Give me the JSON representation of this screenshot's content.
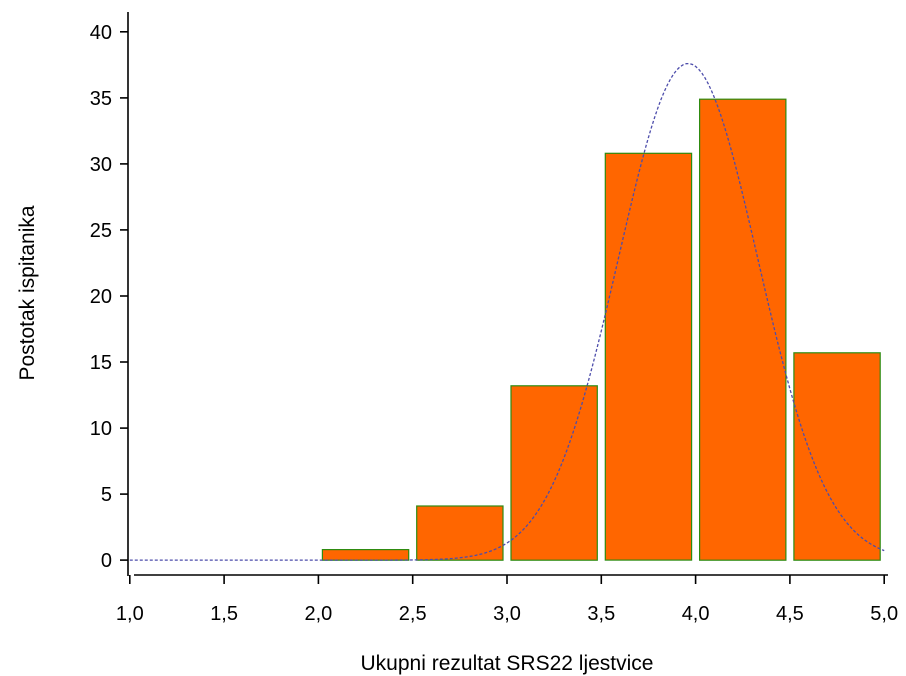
{
  "chart_data": {
    "type": "bar",
    "title": "",
    "xlabel": "Ukupni rezultat SRS22 ljestvice",
    "ylabel": "Postotak ispitanika",
    "xlim": [
      0.98,
      5.02
    ],
    "ylim": [
      -1.2,
      41.5
    ],
    "x_ticks": [
      1.0,
      1.5,
      2.0,
      2.5,
      3.0,
      3.5,
      4.0,
      4.5,
      5.0
    ],
    "x_tick_labels": [
      "1,0",
      "1,5",
      "2,0",
      "2,5",
      "3,0",
      "3,5",
      "4,0",
      "4,5",
      "5,0"
    ],
    "y_ticks": [
      0,
      5,
      10,
      15,
      20,
      25,
      30,
      35,
      40
    ],
    "y_tick_labels": [
      "0",
      "5",
      "10",
      "15",
      "20",
      "25",
      "30",
      "35",
      "40"
    ],
    "bins": [
      {
        "from": 2.0,
        "to": 2.5,
        "value": 0.8
      },
      {
        "from": 2.5,
        "to": 3.0,
        "value": 4.1
      },
      {
        "from": 3.0,
        "to": 3.5,
        "value": 13.2
      },
      {
        "from": 3.5,
        "to": 4.0,
        "value": 30.8
      },
      {
        "from": 4.0,
        "to": 4.5,
        "value": 34.9
      },
      {
        "from": 4.5,
        "to": 5.0,
        "value": 15.7
      }
    ],
    "normal_curve": {
      "mean": 3.96,
      "sd": 0.37,
      "peak": 37.6,
      "x_range": [
        1.0,
        5.0
      ]
    },
    "grid": false,
    "legend": "none",
    "colors": {
      "bar_fill": "#ff6600",
      "bar_stroke": "#2e8b10",
      "curve": "#4d4dab",
      "axis": "#000000"
    }
  }
}
